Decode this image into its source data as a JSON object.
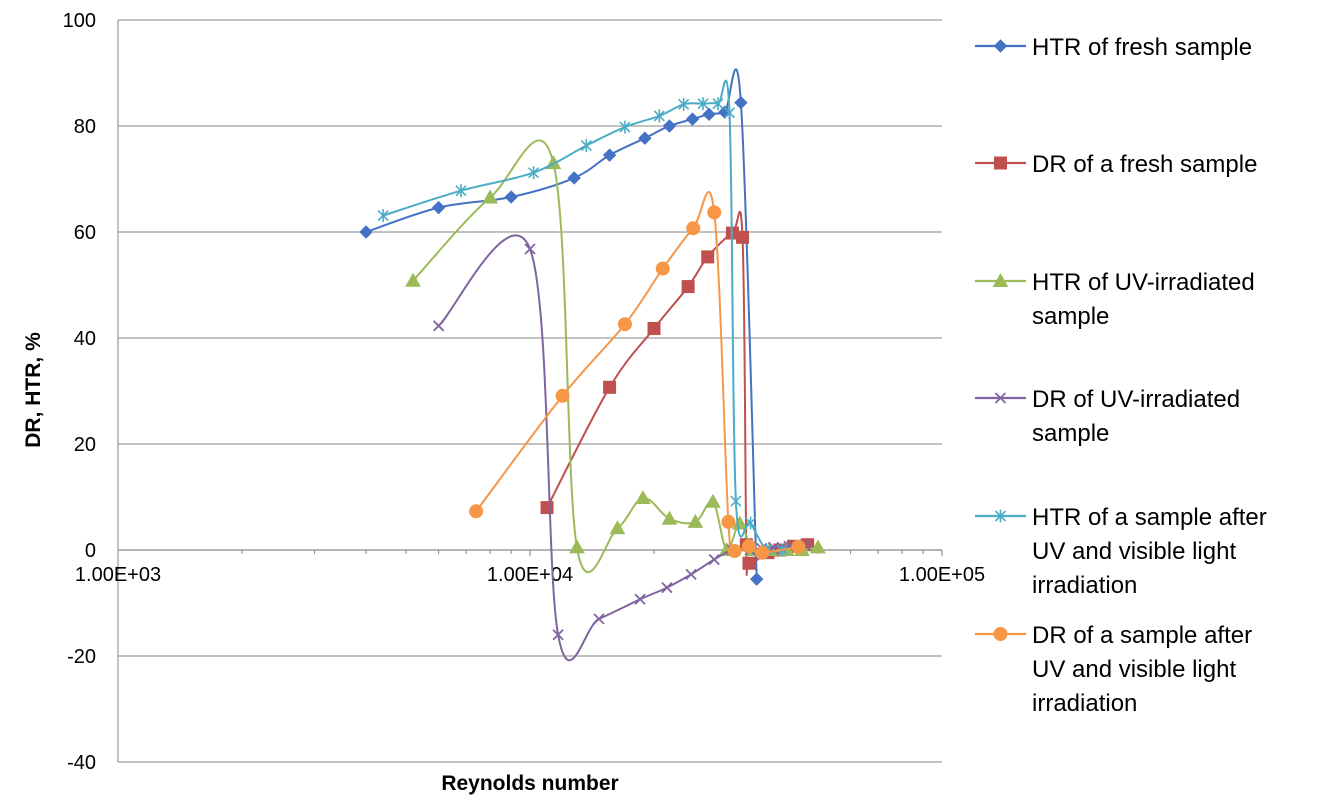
{
  "chart_data": {
    "type": "scatter",
    "xscale": "log",
    "xlim": [
      1000,
      100000
    ],
    "ylim": [
      -40,
      100
    ],
    "yticks": [
      -40,
      -20,
      0,
      20,
      40,
      60,
      80,
      100
    ],
    "ytick_labels": [
      "-40",
      "-20",
      "0",
      "20",
      "40",
      "60",
      "80",
      "100"
    ],
    "xticks": [
      1000,
      10000,
      100000
    ],
    "xtick_labels": [
      "1.00E+03",
      "1.00E+04",
      "1.00E+05"
    ],
    "xlabel": "Reynolds number",
    "ylabel": "DR, HTR, %",
    "grid": "horizontal",
    "legend_position": "right",
    "series": [
      {
        "name": "HTR of fresh sample",
        "legend_lines": [
          "HTR of fresh sample"
        ],
        "color": "#4472C4",
        "marker": "diamond",
        "x": [
          4000,
          6000,
          9000,
          12800,
          15600,
          19000,
          21800,
          24800,
          27200,
          29700,
          32500,
          35500
        ],
        "y": [
          60,
          64.6,
          66.6,
          70.2,
          74.5,
          77.7,
          80,
          81.3,
          82.2,
          82.6,
          84.4,
          -5.5
        ]
      },
      {
        "name": "DR of a fresh sample",
        "legend_lines": [
          "DR of a fresh sample"
        ],
        "color": "#C0504D",
        "marker": "square",
        "x": [
          11000,
          15600,
          20000,
          24200,
          27000,
          31000,
          32800,
          33500,
          34000,
          37800,
          40400,
          43600,
          47200
        ],
        "y": [
          8,
          30.7,
          41.8,
          49.7,
          55.3,
          59.8,
          59,
          1,
          -2.5,
          -0.5,
          0,
          0.7,
          1
        ]
      },
      {
        "name": "HTR of UV-irradiated sample",
        "legend_lines": [
          "HTR of UV-irradiated",
          "sample"
        ],
        "color": "#9BBB59",
        "marker": "triangle",
        "x": [
          5200,
          8000,
          11400,
          13000,
          16300,
          18800,
          21800,
          25200,
          27800,
          30000,
          32300,
          34800,
          38200,
          42000,
          45700,
          50000
        ],
        "y": [
          50.8,
          66.5,
          73,
          0.5,
          4.1,
          9.8,
          5.9,
          5.3,
          9.1,
          0,
          5,
          0,
          0,
          0,
          0,
          0.5
        ]
      },
      {
        "name": "DR of UV-irradiated sample",
        "legend_lines": [
          "DR of UV-irradiated",
          "sample"
        ],
        "color": "#8064A2",
        "marker": "x",
        "x": [
          6000,
          10000,
          11700,
          14700,
          18500,
          21500,
          24600,
          28000,
          31000,
          34200,
          36500,
          39000,
          42500,
          46500
        ],
        "y": [
          42.3,
          56.8,
          -16,
          -13,
          -9.3,
          -7.1,
          -4.6,
          -1.8,
          0,
          0,
          0.3,
          0.5,
          0.7,
          1
        ]
      },
      {
        "name": "HTR of a sample after UV and visible light irradiation",
        "legend_lines": [
          "HTR of a sample after",
          "UV and visible light",
          "irradiation"
        ],
        "color": "#4BACC6",
        "marker": "asterisk",
        "x": [
          4400,
          6800,
          10200,
          13700,
          17000,
          20600,
          23600,
          26300,
          28600,
          30500,
          31600,
          34300,
          37500,
          41000
        ],
        "y": [
          63.1,
          67.8,
          71.2,
          76.3,
          79.8,
          81.9,
          84.1,
          84.2,
          84.2,
          82.5,
          9.2,
          5.1,
          0,
          0
        ]
      },
      {
        "name": "DR of a sample after UV and visible light irradiation",
        "legend_lines": [
          "DR of a sample after",
          "UV and visible light",
          "irradiation"
        ],
        "color": "#F79646",
        "marker": "circle",
        "x": [
          7400,
          12000,
          17000,
          21000,
          24900,
          28000,
          30300,
          31400,
          34000,
          36600,
          44800
        ],
        "y": [
          7.3,
          29.1,
          42.6,
          53.1,
          60.7,
          63.7,
          5.3,
          -0.2,
          0.7,
          -0.5,
          0.6
        ]
      }
    ]
  }
}
